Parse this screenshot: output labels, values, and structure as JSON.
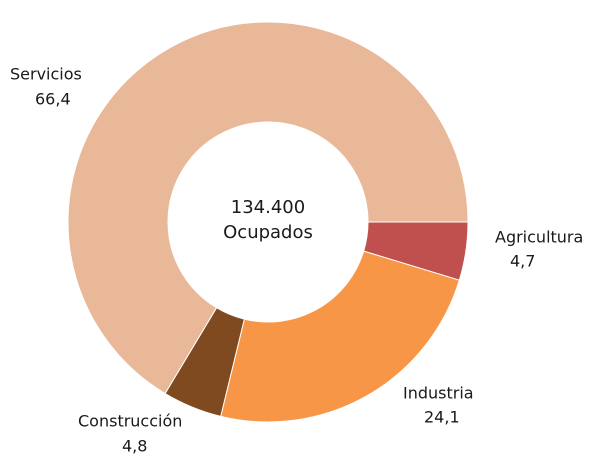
{
  "chart_data": {
    "type": "donut",
    "annotations": [
      "134.400",
      "Ocupados"
    ],
    "categories": [
      "Agricultura",
      "Industria",
      "Construcción",
      "Servicios"
    ],
    "values": [
      4.7,
      24.1,
      4.8,
      66.4
    ],
    "value_labels": [
      "4,7",
      "24,1",
      "4,8",
      "66,4"
    ],
    "colors": [
      "#c0504d",
      "#f79646",
      "#7f4a1f",
      "#e8b898"
    ]
  }
}
